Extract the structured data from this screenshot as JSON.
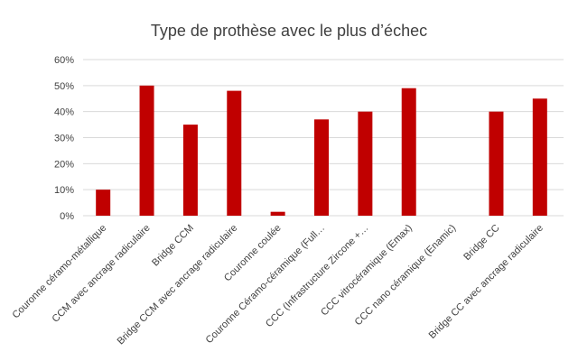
{
  "chart_data": {
    "type": "bar",
    "title": "Type de prothèse avec le plus d’échec",
    "xlabel": "",
    "ylabel": "",
    "ylim": [
      0,
      0.6
    ],
    "y_ticks": [
      0,
      0.1,
      0.2,
      0.3,
      0.4,
      0.5,
      0.6
    ],
    "y_tick_labels": [
      "0%",
      "10%",
      "20%",
      "30%",
      "40%",
      "50%",
      "60%"
    ],
    "grid": true,
    "legend": "none",
    "bar_color": "#C00000",
    "categories": [
      "Couronne céramo-métallique",
      "CCM avec ancrage radiculaire",
      "Bridge CCM",
      "Bridge CCM avec ancrage radiculaire",
      "Couronne coulée",
      "Couronne Céramo-céramique (Full…",
      "CCC (Infrastructure Zircone +…",
      "CCC vitrocéramique (Emax)",
      "CCC nano céramique (Enamic)",
      "Bridge CC",
      "Bridge CC avec ancrage radiculaire"
    ],
    "values": [
      0.1,
      0.5,
      0.35,
      0.48,
      0.015,
      0.37,
      0.4,
      0.49,
      0.0,
      0.4,
      0.45
    ]
  }
}
